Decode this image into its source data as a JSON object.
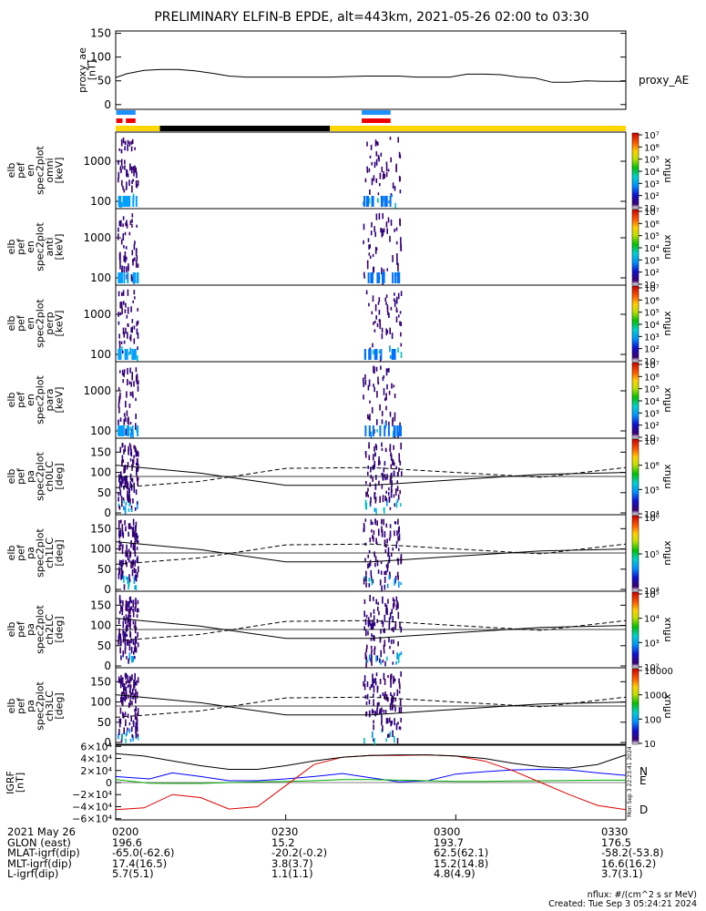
{
  "title": "PRELIMINARY ELFIN-B EPDE, alt=443km, 2021-05-26 02:00 to 03:30",
  "chart_data": [
    {
      "type": "line",
      "ylabel": "proxy_ae\n[nT]",
      "legend": "proxy_AE",
      "ylim": [
        -10,
        155
      ],
      "yticks": [
        "0",
        "50",
        "100",
        "150"
      ],
      "series": [
        {
          "name": "proxy_AE",
          "x": [
            0,
            2,
            5,
            8,
            11,
            14,
            17,
            20,
            23,
            26,
            29,
            32,
            35,
            38,
            41,
            44,
            47,
            50,
            53,
            56,
            59,
            62,
            65,
            68,
            71,
            74,
            77,
            80,
            83,
            86,
            90
          ],
          "values": [
            57,
            65,
            72,
            74,
            74,
            71,
            66,
            60,
            58,
            58,
            58,
            58,
            58,
            58,
            59,
            60,
            60,
            60,
            58,
            58,
            58,
            64,
            64,
            63,
            58,
            56,
            47,
            47,
            50,
            49,
            49
          ]
        }
      ]
    },
    {
      "type": "heatmap",
      "panels": [
        {
          "ylabel": "elb\npef\nen\nspec2plot\nomni\n[keV]",
          "yticks": [
            "100",
            "1000"
          ],
          "cbar_ticks": [
            "10",
            "10²",
            "10³",
            "10⁴",
            "10⁵",
            "10⁶",
            "10⁷"
          ],
          "cbar_label": "nflux"
        },
        {
          "ylabel": "elb\npef\nen\nspec2plot\nanti\n[keV]",
          "yticks": [
            "100",
            "1000"
          ],
          "cbar_ticks": [
            "10",
            "10²",
            "10³",
            "10⁴",
            "10⁵",
            "10⁶",
            "10⁷"
          ],
          "cbar_label": "nflux"
        },
        {
          "ylabel": "elb\npef\nen\nspec2plot\nperp\n[keV]",
          "yticks": [
            "100",
            "1000"
          ],
          "cbar_ticks": [
            "10",
            "10²",
            "10³",
            "10⁴",
            "10⁵",
            "10⁶",
            "10⁷"
          ],
          "cbar_label": "nflux"
        },
        {
          "ylabel": "elb\npef\nen\nspec2plot\npara\n[keV]",
          "yticks": [
            "100",
            "1000"
          ],
          "cbar_ticks": [
            "10",
            "10²",
            "10³",
            "10⁴",
            "10⁵",
            "10⁶",
            "10⁷"
          ],
          "cbar_label": "nflux"
        },
        {
          "ylabel": "elb\npef\npa\nspec2plot\nch0LC\n[deg]",
          "yticks": [
            "0",
            "50",
            "100",
            "150"
          ],
          "cbar_ticks": [
            "10⁴",
            "10⁵",
            "10⁶",
            "10⁷"
          ],
          "cbar_label": "nflux"
        },
        {
          "ylabel": "elb\npef\npa\nspec2plot\nch1LC\n[deg]",
          "yticks": [
            "0",
            "50",
            "100",
            "150"
          ],
          "cbar_ticks": [
            "10⁴",
            "10⁵",
            "10⁶"
          ],
          "cbar_label": "nflux"
        },
        {
          "ylabel": "elb\npef\npa\nspec2plot\nch2LC\n[deg]",
          "yticks": [
            "0",
            "50",
            "100",
            "150"
          ],
          "cbar_ticks": [
            "10²",
            "10³",
            "10⁴",
            "10⁵"
          ],
          "cbar_label": "nflux"
        },
        {
          "ylabel": "elb\npef\npa\nspec2plot\nch3LC\n[deg]",
          "yticks": [
            "0",
            "50",
            "100",
            "150"
          ],
          "cbar_ticks": [
            "10",
            "100",
            "1000",
            "10000"
          ],
          "cbar_label": "nflux"
        }
      ]
    },
    {
      "type": "line",
      "ylabel": "IGRF\n[nT]",
      "ylim": [
        -62000,
        62000
      ],
      "yticks": [
        "6×10⁴",
        "4×10⁴",
        "2×10⁴",
        "0",
        "−2×10⁴",
        "−4×10⁴",
        "−6×10⁴"
      ],
      "series": [
        {
          "name": "N",
          "color": "#0000ff",
          "x": [
            0,
            3,
            6,
            10,
            15,
            20,
            25,
            30,
            35,
            40,
            45,
            50,
            55,
            60,
            65,
            70,
            75,
            80,
            85,
            90
          ],
          "values": [
            10000,
            8000,
            6000,
            16000,
            10000,
            3000,
            3000,
            6000,
            10000,
            15000,
            8000,
            1000,
            3000,
            14000,
            18000,
            21000,
            22000,
            21000,
            16000,
            12000
          ]
        },
        {
          "name": "E",
          "color": "#00aa00",
          "x": [
            0,
            3,
            6,
            10,
            15,
            20,
            25,
            30,
            35,
            40,
            45,
            50,
            55,
            60,
            65,
            70,
            75,
            80,
            85,
            90
          ],
          "values": [
            5000,
            2000,
            -1000,
            -1500,
            -1500,
            0,
            1000,
            2000,
            3000,
            5000,
            5000,
            4000,
            3000,
            2000,
            2000,
            2500,
            3000,
            3500,
            4000,
            4000
          ]
        },
        {
          "name": "D",
          "color": "#dd0000",
          "x": [
            0,
            5,
            10,
            15,
            20,
            25,
            30,
            35,
            40,
            45,
            50,
            55,
            60,
            65,
            70,
            75,
            80,
            85,
            90
          ],
          "values": [
            -45000,
            -42000,
            -20000,
            -25000,
            -44000,
            -40000,
            -5000,
            30000,
            42000,
            45000,
            45000,
            46000,
            44000,
            36000,
            20000,
            0,
            -20000,
            -38000,
            -45000
          ]
        },
        {
          "name": "",
          "color": "#000000",
          "x": [
            0,
            5,
            10,
            15,
            20,
            25,
            30,
            35,
            40,
            45,
            50,
            55,
            60,
            65,
            70,
            75,
            80,
            85,
            90
          ],
          "values": [
            48000,
            44000,
            36000,
            28000,
            22000,
            22000,
            28000,
            36000,
            42000,
            45000,
            46000,
            46000,
            44000,
            40000,
            32000,
            26000,
            24000,
            30000,
            46000
          ]
        }
      ],
      "side_text": "Mon Sep  3 22:23:41 2024"
    }
  ],
  "footer": {
    "rows": [
      {
        "label": "2021 May 26",
        "v": [
          "0200",
          "0230",
          "0300",
          "0330"
        ]
      },
      {
        "label": "GLON (east)",
        "v": [
          "196.6",
          "15.2",
          "193.7",
          "176.5"
        ]
      },
      {
        "label": "MLAT-igrf(dip)",
        "v": [
          "-65.0(-62.6)",
          "-20.2(-0.2)",
          "62.5(62.1)",
          "-58.2(-53.8)"
        ]
      },
      {
        "label": "MLT-igrf(dip)",
        "v": [
          "17.4(16.5)",
          "3.8(3.7)",
          "15.2(14.8)",
          "16.6(16.2)"
        ]
      },
      {
        "label": "L-igrf(dip)",
        "v": [
          "5.7(5.1)",
          "1.1(1.1)",
          "4.8(4.9)",
          "3.7(3.1)"
        ]
      }
    ],
    "note1": "nflux: #/(cm^2 s sr MeV)",
    "note2": "Created: Tue Sep  3 05:24:21 2024"
  }
}
